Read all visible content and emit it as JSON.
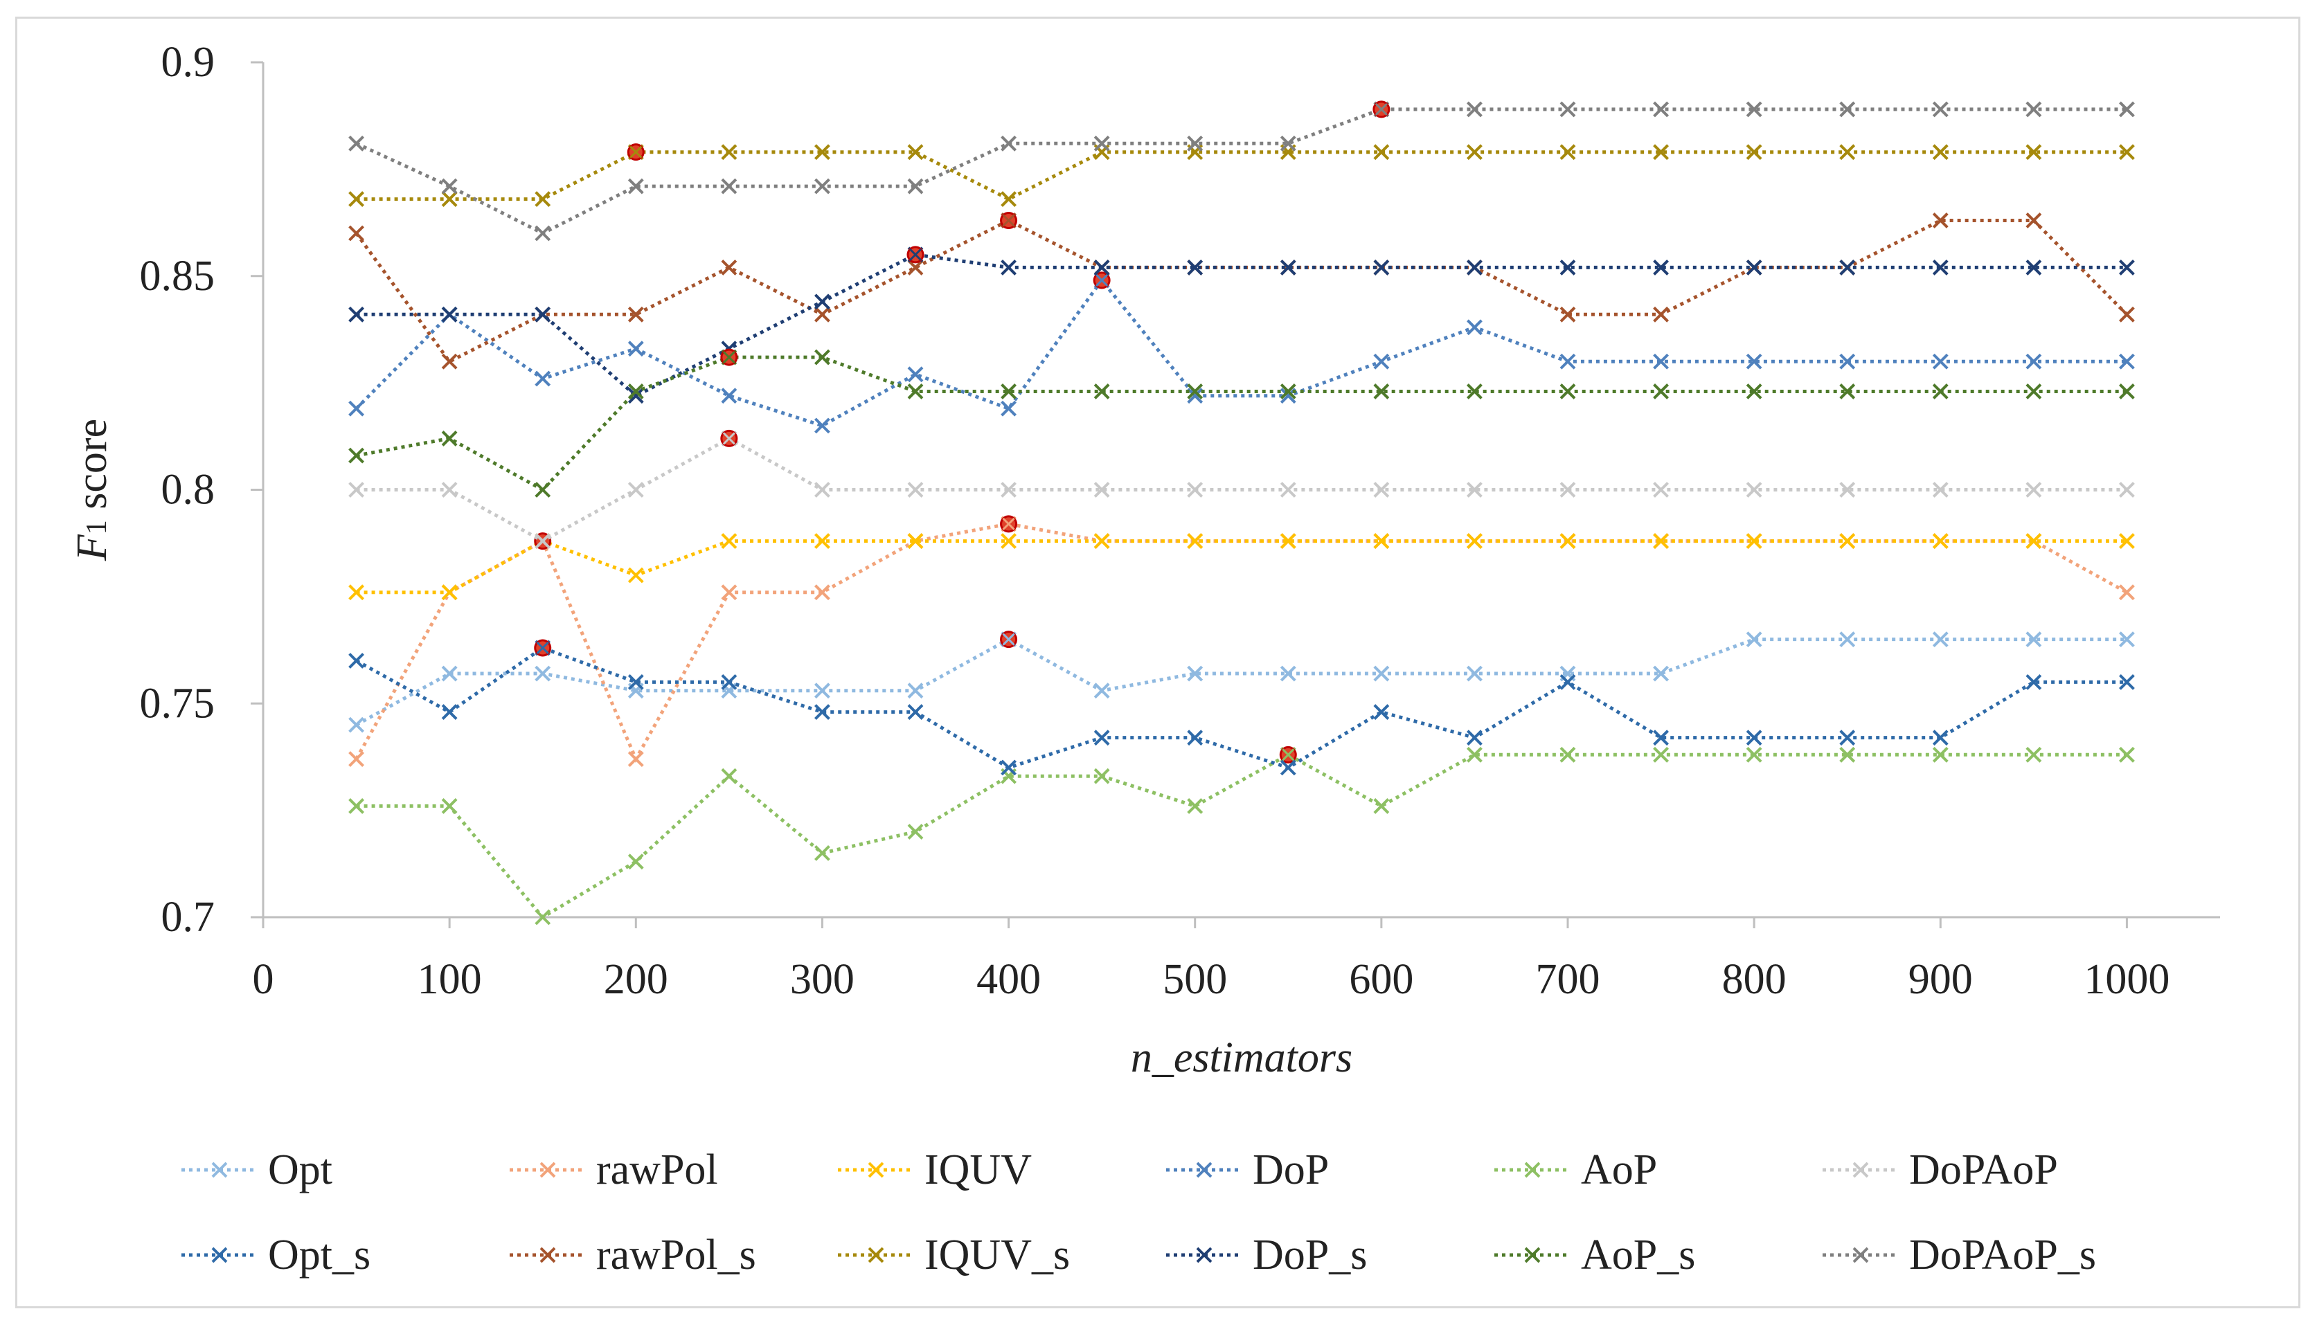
{
  "chart_data": {
    "type": "line",
    "title": "",
    "xlabel": "n_estimators",
    "ylabel_main": "F",
    "ylabel_sub": "1",
    "ylabel_rest": " score",
    "xlim": [
      0,
      1050
    ],
    "ylim": [
      0.7,
      0.9
    ],
    "x_ticks": [
      0,
      100,
      200,
      300,
      400,
      500,
      600,
      700,
      800,
      900,
      1000
    ],
    "y_ticks": [
      0.7,
      0.75,
      0.8,
      0.85,
      0.9
    ],
    "x_tick_labels": [
      "0",
      "100",
      "200",
      "300",
      "400",
      "500",
      "600",
      "700",
      "800",
      "900",
      "1000"
    ],
    "y_tick_labels": [
      "0.7",
      "0.75",
      "0.8",
      "0.85",
      "0.9"
    ],
    "legend_position": "bottom",
    "x": [
      50,
      100,
      150,
      200,
      250,
      300,
      350,
      400,
      450,
      500,
      550,
      600,
      650,
      700,
      750,
      800,
      850,
      900,
      950,
      1000
    ],
    "series": [
      {
        "name": "Opt",
        "color": "#8fb9e0",
        "values": [
          0.745,
          0.757,
          0.757,
          0.753,
          0.753,
          0.753,
          0.753,
          0.765,
          0.753,
          0.757,
          0.757,
          0.757,
          0.757,
          0.757,
          0.757,
          0.765,
          0.765,
          0.765,
          0.765,
          0.765
        ],
        "best_index": 7
      },
      {
        "name": "rawPol",
        "color": "#f2a37a",
        "values": [
          0.737,
          0.776,
          0.788,
          0.737,
          0.776,
          0.776,
          0.788,
          0.792,
          0.788,
          0.788,
          0.788,
          0.788,
          0.788,
          0.788,
          0.788,
          0.788,
          0.788,
          0.788,
          0.788,
          0.776
        ],
        "best_index": 7
      },
      {
        "name": "IQUV",
        "color": "#ffc000",
        "values": [
          0.776,
          0.776,
          0.788,
          0.78,
          0.788,
          0.788,
          0.788,
          0.788,
          0.788,
          0.788,
          0.788,
          0.788,
          0.788,
          0.788,
          0.788,
          0.788,
          0.788,
          0.788,
          0.788,
          0.788
        ],
        "best_index": 2
      },
      {
        "name": "DoP",
        "color": "#4f81bd",
        "values": [
          0.819,
          0.841,
          0.826,
          0.833,
          0.822,
          0.815,
          0.827,
          0.819,
          0.849,
          0.822,
          0.822,
          0.83,
          0.838,
          0.83,
          0.83,
          0.83,
          0.83,
          0.83,
          0.83,
          0.83
        ],
        "best_index": 8
      },
      {
        "name": "AoP",
        "color": "#8dc063",
        "values": [
          0.726,
          0.726,
          0.7,
          0.713,
          0.733,
          0.715,
          0.72,
          0.733,
          0.733,
          0.726,
          0.738,
          0.726,
          0.738,
          0.738,
          0.738,
          0.738,
          0.738,
          0.738,
          0.738,
          0.738
        ],
        "best_index": 10
      },
      {
        "name": "DoPAoP",
        "color": "#c8c8c8",
        "values": [
          0.8,
          0.8,
          0.788,
          0.8,
          0.812,
          0.8,
          0.8,
          0.8,
          0.8,
          0.8,
          0.8,
          0.8,
          0.8,
          0.8,
          0.8,
          0.8,
          0.8,
          0.8,
          0.8,
          0.8
        ],
        "best_index": 4
      },
      {
        "name": "Opt_s",
        "color": "#2e6aa8",
        "values": [
          0.76,
          0.748,
          0.763,
          0.755,
          0.755,
          0.748,
          0.748,
          0.735,
          0.742,
          0.742,
          0.735,
          0.748,
          0.742,
          0.755,
          0.742,
          0.742,
          0.742,
          0.742,
          0.755,
          0.755
        ],
        "best_index": 2
      },
      {
        "name": "rawPol_s",
        "color": "#a5532c",
        "values": [
          0.86,
          0.83,
          0.841,
          0.841,
          0.852,
          0.841,
          0.852,
          0.863,
          0.852,
          0.852,
          0.852,
          0.852,
          0.852,
          0.841,
          0.841,
          0.852,
          0.852,
          0.863,
          0.863,
          0.841
        ],
        "best_index": 7
      },
      {
        "name": "IQUV_s",
        "color": "#a6890c",
        "values": [
          0.868,
          0.868,
          0.868,
          0.879,
          0.879,
          0.879,
          0.879,
          0.868,
          0.879,
          0.879,
          0.879,
          0.879,
          0.879,
          0.879,
          0.879,
          0.879,
          0.879,
          0.879,
          0.879,
          0.879
        ],
        "best_index": 3
      },
      {
        "name": "DoP_s",
        "color": "#1f3e73",
        "values": [
          0.841,
          0.841,
          0.841,
          0.822,
          0.833,
          0.844,
          0.855,
          0.852,
          0.852,
          0.852,
          0.852,
          0.852,
          0.852,
          0.852,
          0.852,
          0.852,
          0.852,
          0.852,
          0.852,
          0.852
        ],
        "best_index": 6
      },
      {
        "name": "AoP_s",
        "color": "#4e7a2a",
        "values": [
          0.808,
          0.812,
          0.8,
          0.823,
          0.831,
          0.831,
          0.823,
          0.823,
          0.823,
          0.823,
          0.823,
          0.823,
          0.823,
          0.823,
          0.823,
          0.823,
          0.823,
          0.823,
          0.823,
          0.823
        ],
        "best_index": 4
      },
      {
        "name": "DoPAoP_s",
        "color": "#7f7f7f",
        "values": [
          0.881,
          0.871,
          0.86,
          0.871,
          0.871,
          0.871,
          0.871,
          0.881,
          0.881,
          0.881,
          0.881,
          0.889,
          0.889,
          0.889,
          0.889,
          0.889,
          0.889,
          0.889,
          0.889,
          0.889
        ],
        "best_index": 11
      }
    ]
  }
}
